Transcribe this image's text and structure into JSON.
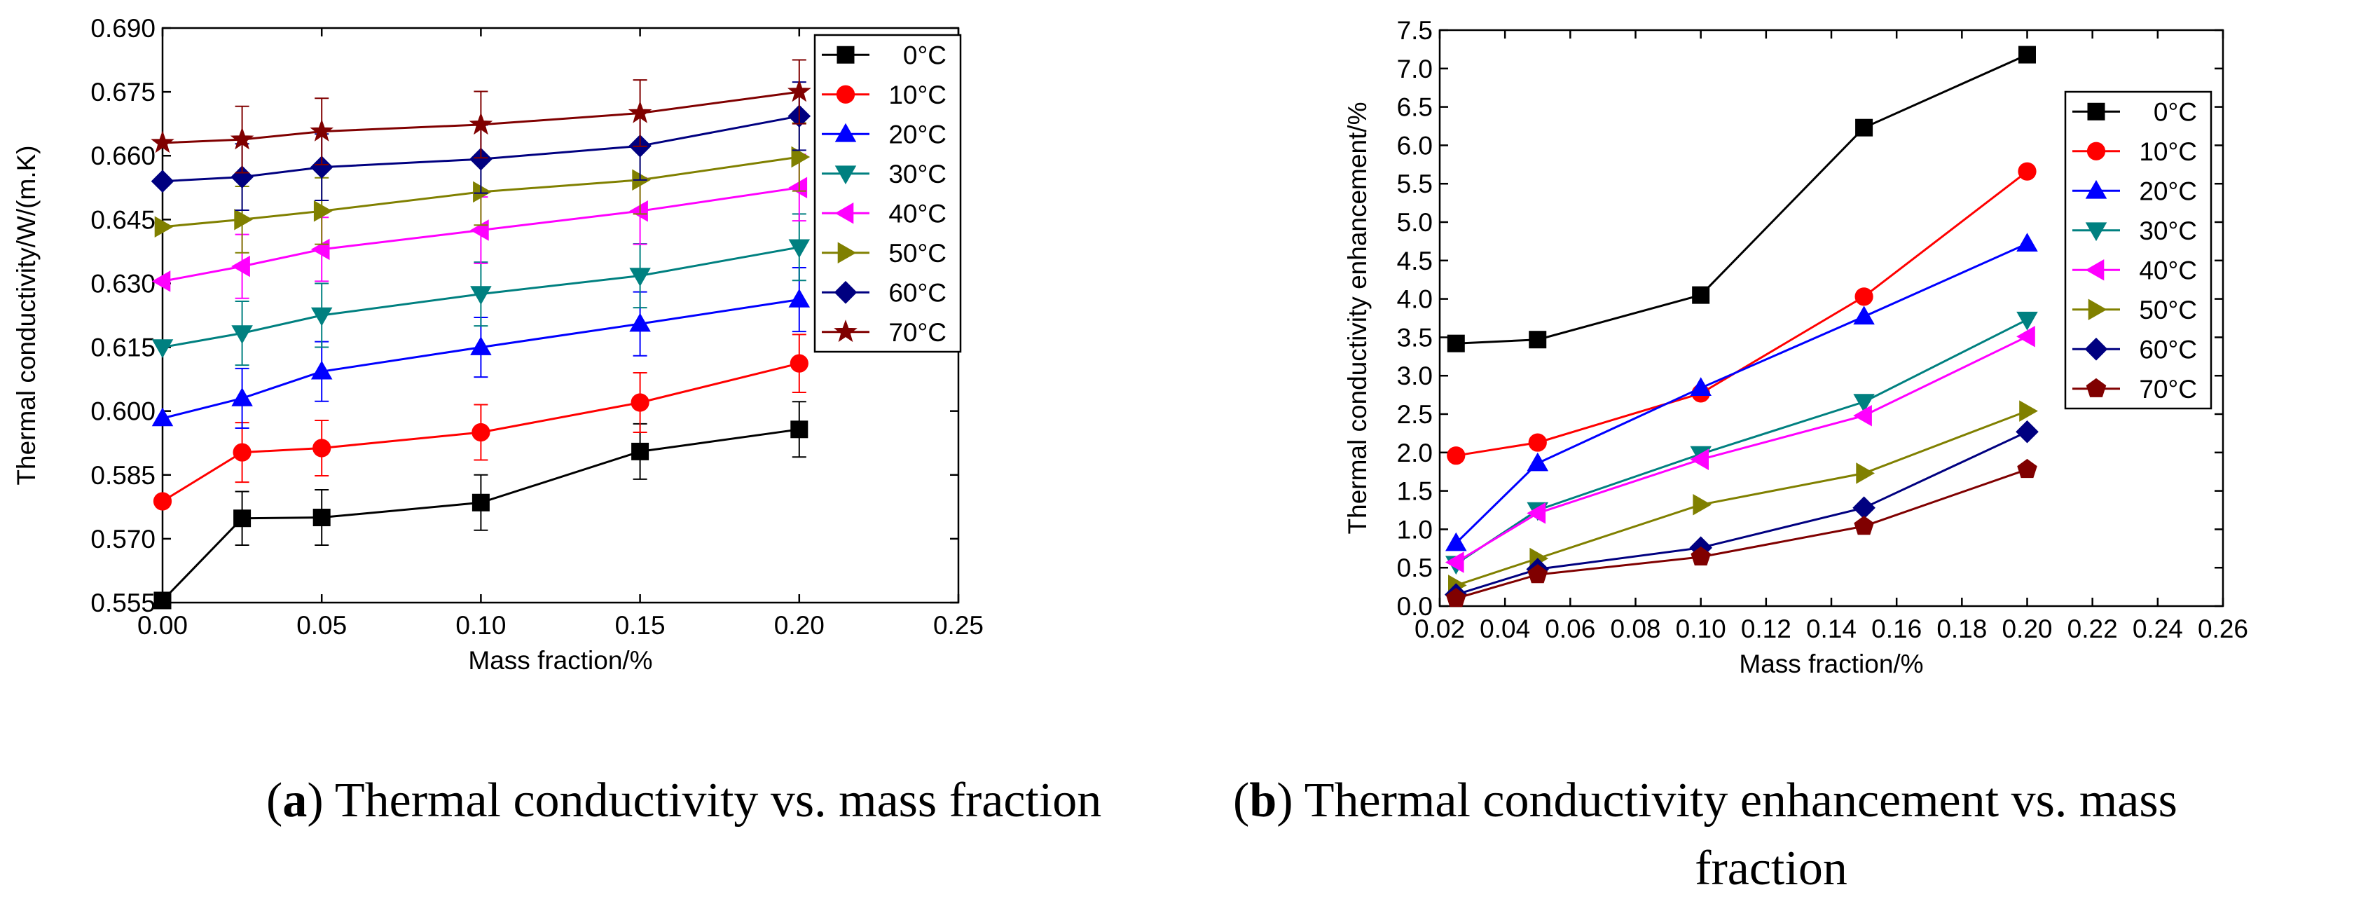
{
  "chart_data": [
    {
      "type": "line",
      "caption": {
        "letter": "a",
        "text": " Thermal conductivity vs. mass fraction"
      },
      "xlabel": "Mass fraction/%",
      "ylabel": "Thermal conductivity/W/(m.K)",
      "xlim": [
        0.0,
        0.25
      ],
      "ylim": [
        0.555,
        0.69
      ],
      "xticks": [
        "0.00",
        "0.05",
        "0.10",
        "0.15",
        "0.20",
        "0.25"
      ],
      "yticks": [
        "0.555",
        "0.570",
        "0.585",
        "0.600",
        "0.615",
        "0.630",
        "0.645",
        "0.660",
        "0.675",
        "0.690"
      ],
      "grid": false,
      "legend_position": "top-right",
      "error_bars": true,
      "x": [
        0.0,
        0.025,
        0.05,
        0.1,
        0.15,
        0.2
      ],
      "series": [
        {
          "name": "0°C",
          "color": "#000000",
          "marker": "square",
          "values": [
            0.5555,
            0.5748,
            0.575,
            0.5785,
            0.5905,
            0.5957
          ],
          "error": [
            0,
            0.0063,
            0.0065,
            0.0065,
            0.0065,
            0.0065
          ]
        },
        {
          "name": "10°C",
          "color": "#ff0000",
          "marker": "circle",
          "values": [
            0.5788,
            0.5903,
            0.5913,
            0.595,
            0.602,
            0.6112
          ],
          "error": [
            0,
            0.007,
            0.0065,
            0.0065,
            0.007,
            0.0068
          ]
        },
        {
          "name": "20°C",
          "color": "#0000ff",
          "marker": "triangle-up",
          "values": [
            0.5983,
            0.603,
            0.6093,
            0.615,
            0.6205,
            0.6262
          ],
          "error": [
            0,
            0.007,
            0.007,
            0.007,
            0.0075,
            0.0075
          ]
        },
        {
          "name": "30°C",
          "color": "#008080",
          "marker": "triangle-down",
          "values": [
            0.615,
            0.6183,
            0.6225,
            0.6275,
            0.6318,
            0.6385
          ],
          "error": [
            0,
            0.0075,
            0.0075,
            0.0075,
            0.0075,
            0.0078
          ]
        },
        {
          "name": "40°C",
          "color": "#ff00ff",
          "marker": "triangle-left",
          "values": [
            0.6305,
            0.634,
            0.638,
            0.6425,
            0.647,
            0.6525
          ],
          "error": [
            0,
            0.0075,
            0.0075,
            0.0078,
            0.0078,
            0.0078
          ]
        },
        {
          "name": "50°C",
          "color": "#808000",
          "marker": "triangle-right",
          "values": [
            0.6433,
            0.645,
            0.647,
            0.6515,
            0.6543,
            0.6597
          ],
          "error": [
            0,
            0.0078,
            0.0078,
            0.0078,
            0.008,
            0.008
          ]
        },
        {
          "name": "60°C",
          "color": "#000080",
          "marker": "diamond",
          "values": [
            0.654,
            0.655,
            0.6573,
            0.6592,
            0.6623,
            0.6693
          ],
          "error": [
            0,
            0.0078,
            0.0078,
            0.008,
            0.008,
            0.008
          ]
        },
        {
          "name": "70°C",
          "color": "#800000",
          "marker": "star",
          "values": [
            0.663,
            0.6638,
            0.6657,
            0.6673,
            0.67,
            0.675
          ],
          "error": [
            0,
            0.0078,
            0.0078,
            0.0078,
            0.0078,
            0.0075
          ]
        }
      ]
    },
    {
      "type": "line",
      "caption": {
        "letter": "b",
        "text": " Thermal conductivity enhancement vs. mass",
        "text_line2": "fraction"
      },
      "xlabel": "Mass fraction/%",
      "ylabel": "Thermal conductivity enhancement/%",
      "xlim": [
        0.02,
        0.26
      ],
      "ylim": [
        0.0,
        7.5
      ],
      "xticks": [
        "0.02",
        "0.04",
        "0.06",
        "0.08",
        "0.10",
        "0.12",
        "0.14",
        "0.16",
        "0.18",
        "0.20",
        "0.22",
        "0.24",
        "0.26"
      ],
      "yticks": [
        "0.0",
        "0.5",
        "1.0",
        "1.5",
        "2.0",
        "2.5",
        "3.0",
        "3.5",
        "4.0",
        "4.5",
        "5.0",
        "5.5",
        "6.0",
        "6.5",
        "7.0",
        "7.5"
      ],
      "grid": false,
      "legend_position": "right",
      "error_bars": false,
      "x": [
        0.025,
        0.05,
        0.1,
        0.15,
        0.2
      ],
      "series": [
        {
          "name": "0°C",
          "color": "#000000",
          "marker": "square",
          "values": [
            3.42,
            3.47,
            4.05,
            6.23,
            7.18
          ]
        },
        {
          "name": "10°C",
          "color": "#ff0000",
          "marker": "circle",
          "values": [
            1.96,
            2.13,
            2.77,
            4.03,
            5.66
          ]
        },
        {
          "name": "20°C",
          "color": "#0000ff",
          "marker": "triangle-up",
          "values": [
            0.82,
            1.86,
            2.84,
            3.77,
            4.72
          ]
        },
        {
          "name": "30°C",
          "color": "#008080",
          "marker": "triangle-down",
          "values": [
            0.55,
            1.25,
            1.98,
            2.66,
            3.73
          ]
        },
        {
          "name": "40°C",
          "color": "#ff00ff",
          "marker": "triangle-left",
          "values": [
            0.57,
            1.21,
            1.91,
            2.48,
            3.51
          ]
        },
        {
          "name": "50°C",
          "color": "#808000",
          "marker": "triangle-right",
          "values": [
            0.27,
            0.62,
            1.32,
            1.73,
            2.54
          ]
        },
        {
          "name": "60°C",
          "color": "#000080",
          "marker": "diamond",
          "values": [
            0.15,
            0.48,
            0.76,
            1.28,
            2.27
          ]
        },
        {
          "name": "70°C",
          "color": "#800000",
          "marker": "pentagon",
          "values": [
            0.1,
            0.41,
            0.64,
            1.04,
            1.78
          ]
        }
      ]
    }
  ]
}
